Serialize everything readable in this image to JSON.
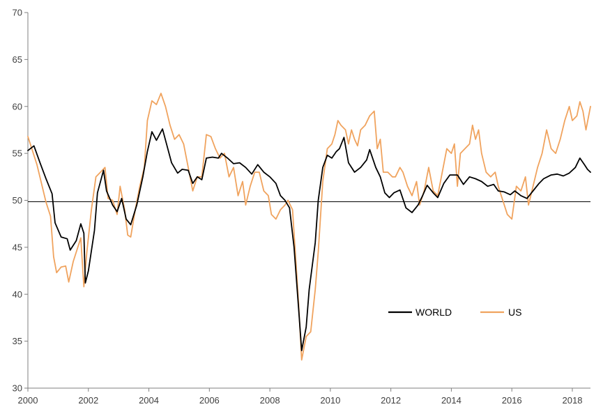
{
  "chart_data": {
    "type": "line",
    "title": "",
    "xlabel": "",
    "ylabel": "",
    "xlim": [
      2000.0,
      2018.6
    ],
    "ylim": [
      30,
      70
    ],
    "xticks": [
      "2000",
      "2002",
      "2004",
      "2006",
      "2008",
      "2010",
      "2012",
      "2014",
      "2016",
      "2018"
    ],
    "yticks": [
      "30",
      "35",
      "40",
      "45",
      "50",
      "55",
      "60",
      "65",
      "70"
    ],
    "reference_line": 50,
    "grid": false,
    "legend_position": "lower-right",
    "series": [
      {
        "name": "WORLD",
        "color": "#000000",
        "points": [
          [
            2000.0,
            55.3
          ],
          [
            2000.2,
            55.8
          ],
          [
            2000.4,
            54.0
          ],
          [
            2000.6,
            52.3
          ],
          [
            2000.8,
            50.7
          ],
          [
            2000.9,
            47.6
          ],
          [
            2001.1,
            46.1
          ],
          [
            2001.3,
            45.9
          ],
          [
            2001.4,
            44.7
          ],
          [
            2001.6,
            45.7
          ],
          [
            2001.75,
            47.5
          ],
          [
            2001.85,
            46.5
          ],
          [
            2001.9,
            41.2
          ],
          [
            2002.0,
            42.5
          ],
          [
            2002.2,
            46.8
          ],
          [
            2002.3,
            50.8
          ],
          [
            2002.5,
            53.2
          ],
          [
            2002.6,
            51.0
          ],
          [
            2002.8,
            49.5
          ],
          [
            2002.95,
            48.8
          ],
          [
            2003.1,
            50.2
          ],
          [
            2003.25,
            48.0
          ],
          [
            2003.4,
            47.4
          ],
          [
            2003.6,
            49.5
          ],
          [
            2003.8,
            52.5
          ],
          [
            2003.95,
            55.2
          ],
          [
            2004.1,
            57.3
          ],
          [
            2004.25,
            56.4
          ],
          [
            2004.45,
            57.6
          ],
          [
            2004.6,
            55.8
          ],
          [
            2004.75,
            54.0
          ],
          [
            2004.95,
            52.9
          ],
          [
            2005.1,
            53.3
          ],
          [
            2005.3,
            53.2
          ],
          [
            2005.45,
            51.8
          ],
          [
            2005.6,
            52.5
          ],
          [
            2005.75,
            52.2
          ],
          [
            2005.9,
            54.5
          ],
          [
            2006.1,
            54.6
          ],
          [
            2006.3,
            54.5
          ],
          [
            2006.4,
            55.0
          ],
          [
            2006.6,
            54.5
          ],
          [
            2006.8,
            53.9
          ],
          [
            2007.0,
            54.0
          ],
          [
            2007.2,
            53.5
          ],
          [
            2007.4,
            52.8
          ],
          [
            2007.6,
            53.8
          ],
          [
            2007.8,
            53.0
          ],
          [
            2008.0,
            52.5
          ],
          [
            2008.2,
            51.8
          ],
          [
            2008.35,
            50.5
          ],
          [
            2008.5,
            50.0
          ],
          [
            2008.65,
            49.2
          ],
          [
            2008.8,
            45.0
          ],
          [
            2008.95,
            38.5
          ],
          [
            2009.05,
            34.0
          ],
          [
            2009.2,
            36.5
          ],
          [
            2009.3,
            40.5
          ],
          [
            2009.5,
            45.5
          ],
          [
            2009.6,
            50.0
          ],
          [
            2009.75,
            53.5
          ],
          [
            2009.9,
            54.8
          ],
          [
            2010.05,
            54.5
          ],
          [
            2010.2,
            55.2
          ],
          [
            2010.3,
            55.5
          ],
          [
            2010.45,
            56.7
          ],
          [
            2010.6,
            54.0
          ],
          [
            2010.8,
            53.0
          ],
          [
            2011.0,
            53.5
          ],
          [
            2011.2,
            54.3
          ],
          [
            2011.3,
            55.4
          ],
          [
            2011.5,
            53.5
          ],
          [
            2011.65,
            52.5
          ],
          [
            2011.8,
            50.8
          ],
          [
            2011.95,
            50.3
          ],
          [
            2012.1,
            50.8
          ],
          [
            2012.3,
            51.1
          ],
          [
            2012.5,
            49.2
          ],
          [
            2012.7,
            48.7
          ],
          [
            2012.9,
            49.5
          ],
          [
            2013.05,
            50.5
          ],
          [
            2013.2,
            51.6
          ],
          [
            2013.4,
            50.8
          ],
          [
            2013.55,
            50.3
          ],
          [
            2013.75,
            51.8
          ],
          [
            2013.95,
            52.7
          ],
          [
            2014.2,
            52.7
          ],
          [
            2014.4,
            51.7
          ],
          [
            2014.6,
            52.5
          ],
          [
            2014.8,
            52.3
          ],
          [
            2015.0,
            52.0
          ],
          [
            2015.2,
            51.5
          ],
          [
            2015.4,
            51.7
          ],
          [
            2015.55,
            51.0
          ],
          [
            2015.75,
            50.9
          ],
          [
            2015.95,
            50.6
          ],
          [
            2016.1,
            51.0
          ],
          [
            2016.3,
            50.5
          ],
          [
            2016.5,
            50.2
          ],
          [
            2016.7,
            51.0
          ],
          [
            2016.9,
            51.8
          ],
          [
            2017.05,
            52.3
          ],
          [
            2017.3,
            52.7
          ],
          [
            2017.5,
            52.8
          ],
          [
            2017.7,
            52.6
          ],
          [
            2017.9,
            52.9
          ],
          [
            2018.1,
            53.5
          ],
          [
            2018.25,
            54.5
          ],
          [
            2018.4,
            53.8
          ],
          [
            2018.5,
            53.3
          ],
          [
            2018.6,
            53.0
          ]
        ]
      },
      {
        "name": "US",
        "color": "#f0a35e",
        "points": [
          [
            2000.0,
            56.8
          ],
          [
            2000.15,
            55.3
          ],
          [
            2000.3,
            53.8
          ],
          [
            2000.45,
            51.8
          ],
          [
            2000.6,
            49.8
          ],
          [
            2000.75,
            48.3
          ],
          [
            2000.85,
            44.0
          ],
          [
            2000.95,
            42.3
          ],
          [
            2001.1,
            42.9
          ],
          [
            2001.25,
            43.0
          ],
          [
            2001.35,
            41.3
          ],
          [
            2001.5,
            43.5
          ],
          [
            2001.65,
            45.0
          ],
          [
            2001.75,
            46.0
          ],
          [
            2001.85,
            40.8
          ],
          [
            2001.95,
            44.5
          ],
          [
            2002.1,
            49.0
          ],
          [
            2002.25,
            52.5
          ],
          [
            2002.4,
            53.0
          ],
          [
            2002.55,
            53.5
          ],
          [
            2002.65,
            50.2
          ],
          [
            2002.8,
            50.0
          ],
          [
            2002.95,
            48.5
          ],
          [
            2003.05,
            51.5
          ],
          [
            2003.2,
            49.0
          ],
          [
            2003.3,
            46.3
          ],
          [
            2003.4,
            46.1
          ],
          [
            2003.55,
            49.0
          ],
          [
            2003.7,
            51.5
          ],
          [
            2003.85,
            53.5
          ],
          [
            2003.95,
            58.5
          ],
          [
            2004.1,
            60.6
          ],
          [
            2004.25,
            60.2
          ],
          [
            2004.4,
            61.4
          ],
          [
            2004.55,
            60.0
          ],
          [
            2004.7,
            58.0
          ],
          [
            2004.85,
            56.5
          ],
          [
            2005.0,
            57.0
          ],
          [
            2005.15,
            56.0
          ],
          [
            2005.3,
            53.5
          ],
          [
            2005.45,
            51.0
          ],
          [
            2005.6,
            52.5
          ],
          [
            2005.75,
            52.5
          ],
          [
            2005.9,
            57.0
          ],
          [
            2006.05,
            56.8
          ],
          [
            2006.2,
            55.5
          ],
          [
            2006.35,
            54.5
          ],
          [
            2006.5,
            55.0
          ],
          [
            2006.65,
            52.5
          ],
          [
            2006.8,
            53.5
          ],
          [
            2006.95,
            50.5
          ],
          [
            2007.1,
            52.0
          ],
          [
            2007.2,
            49.5
          ],
          [
            2007.35,
            51.5
          ],
          [
            2007.5,
            53.0
          ],
          [
            2007.65,
            53.0
          ],
          [
            2007.8,
            51.0
          ],
          [
            2007.95,
            50.5
          ],
          [
            2008.05,
            48.5
          ],
          [
            2008.2,
            48.0
          ],
          [
            2008.35,
            49.0
          ],
          [
            2008.5,
            49.5
          ],
          [
            2008.6,
            50.0
          ],
          [
            2008.75,
            49.0
          ],
          [
            2008.85,
            44.0
          ],
          [
            2008.95,
            39.0
          ],
          [
            2009.05,
            33.0
          ],
          [
            2009.2,
            35.5
          ],
          [
            2009.35,
            36.0
          ],
          [
            2009.5,
            40.5
          ],
          [
            2009.6,
            44.5
          ],
          [
            2009.75,
            52.0
          ],
          [
            2009.9,
            55.5
          ],
          [
            2010.05,
            56.0
          ],
          [
            2010.15,
            57.0
          ],
          [
            2010.25,
            58.5
          ],
          [
            2010.35,
            58.0
          ],
          [
            2010.5,
            57.5
          ],
          [
            2010.6,
            56.0
          ],
          [
            2010.7,
            57.5
          ],
          [
            2010.8,
            56.5
          ],
          [
            2010.9,
            55.8
          ],
          [
            2011.0,
            57.5
          ],
          [
            2011.15,
            58.0
          ],
          [
            2011.3,
            59.0
          ],
          [
            2011.45,
            59.5
          ],
          [
            2011.55,
            55.5
          ],
          [
            2011.65,
            56.5
          ],
          [
            2011.75,
            53.0
          ],
          [
            2011.9,
            53.0
          ],
          [
            2012.05,
            52.5
          ],
          [
            2012.15,
            52.5
          ],
          [
            2012.3,
            53.5
          ],
          [
            2012.4,
            53.0
          ],
          [
            2012.55,
            51.5
          ],
          [
            2012.7,
            50.5
          ],
          [
            2012.85,
            52.0
          ],
          [
            2012.95,
            49.5
          ],
          [
            2013.1,
            51.0
          ],
          [
            2013.25,
            53.5
          ],
          [
            2013.4,
            51.0
          ],
          [
            2013.55,
            50.5
          ],
          [
            2013.7,
            53.0
          ],
          [
            2013.85,
            55.5
          ],
          [
            2014.0,
            55.0
          ],
          [
            2014.1,
            56.0
          ],
          [
            2014.2,
            51.5
          ],
          [
            2014.3,
            55.0
          ],
          [
            2014.45,
            55.5
          ],
          [
            2014.6,
            56.0
          ],
          [
            2014.7,
            58.0
          ],
          [
            2014.8,
            56.5
          ],
          [
            2014.9,
            57.5
          ],
          [
            2015.0,
            55.0
          ],
          [
            2015.15,
            53.0
          ],
          [
            2015.3,
            52.5
          ],
          [
            2015.45,
            53.0
          ],
          [
            2015.55,
            51.5
          ],
          [
            2015.7,
            50.0
          ],
          [
            2015.85,
            48.5
          ],
          [
            2016.0,
            48.0
          ],
          [
            2016.15,
            51.5
          ],
          [
            2016.3,
            51.0
          ],
          [
            2016.45,
            52.5
          ],
          [
            2016.55,
            49.5
          ],
          [
            2016.7,
            51.5
          ],
          [
            2016.85,
            53.5
          ],
          [
            2017.0,
            55.0
          ],
          [
            2017.15,
            57.5
          ],
          [
            2017.3,
            55.5
          ],
          [
            2017.45,
            55.0
          ],
          [
            2017.6,
            56.5
          ],
          [
            2017.75,
            58.5
          ],
          [
            2017.9,
            60.0
          ],
          [
            2018.0,
            58.5
          ],
          [
            2018.15,
            59.0
          ],
          [
            2018.25,
            60.5
          ],
          [
            2018.35,
            59.5
          ],
          [
            2018.45,
            57.5
          ],
          [
            2018.6,
            60.0
          ]
        ]
      }
    ]
  }
}
